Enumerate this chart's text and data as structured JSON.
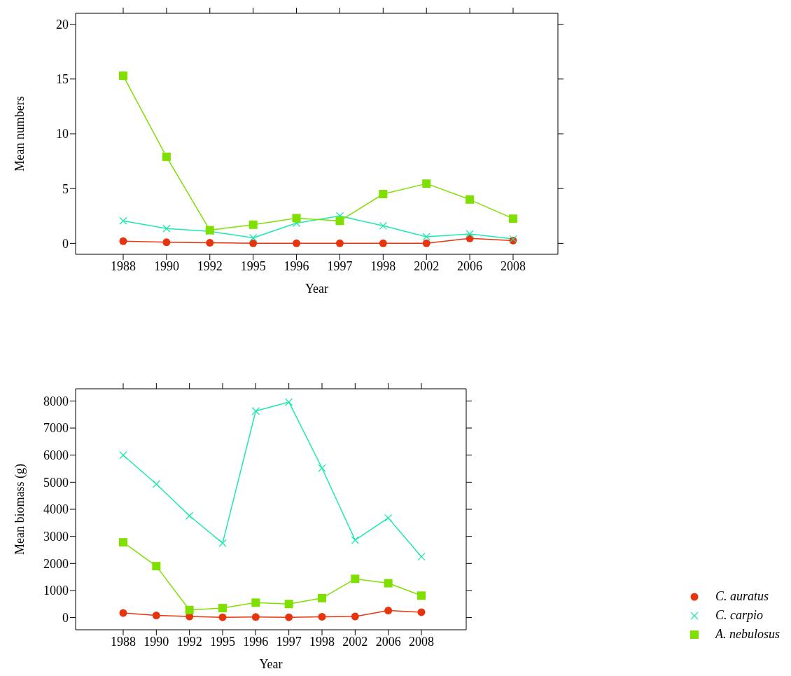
{
  "chart_data": [
    {
      "type": "line",
      "xlabel": "Year",
      "ylabel": "Mean numbers",
      "categories": [
        "1988",
        "1990",
        "1992",
        "1995",
        "1996",
        "1997",
        "1998",
        "2002",
        "2006",
        "2008"
      ],
      "ylim": [
        -1,
        21
      ],
      "yticks": [
        0,
        5,
        10,
        15,
        20
      ],
      "grid": false,
      "legend": false,
      "series": [
        {
          "color": "#e8340c",
          "marker": "circle",
          "values": [
            0.2,
            0.1,
            0.05,
            0,
            0,
            0,
            0,
            0,
            0.45,
            0.25
          ]
        },
        {
          "color": "#1de9b0",
          "marker": "cross",
          "values": [
            2.05,
            1.35,
            1.1,
            0.5,
            1.85,
            2.5,
            1.6,
            0.6,
            0.85,
            0.4
          ]
        },
        {
          "color": "#7fe000",
          "marker": "square",
          "values": [
            15.3,
            7.9,
            1.2,
            1.7,
            2.3,
            2.05,
            4.5,
            5.45,
            4.0,
            2.25
          ]
        }
      ]
    },
    {
      "type": "line",
      "xlabel": "Year",
      "ylabel": "Mean biomass (g)",
      "categories": [
        "1988",
        "1990",
        "1992",
        "1995",
        "1996",
        "1997",
        "1998",
        "2002",
        "2006",
        "2008"
      ],
      "ylim": [
        -450,
        8450
      ],
      "yticks": [
        0,
        1000,
        2000,
        3000,
        4000,
        5000,
        6000,
        7000,
        8000
      ],
      "grid": false,
      "legend": "bottom right",
      "series": [
        {
          "name": "C. auratus",
          "color": "#e8340c",
          "marker": "circle",
          "values": [
            170,
            80,
            40,
            10,
            20,
            10,
            30,
            40,
            260,
            200
          ]
        },
        {
          "name": "C. carpio",
          "color": "#1de9b0",
          "marker": "cross",
          "values": [
            6000,
            4930,
            3760,
            2750,
            7630,
            7960,
            5520,
            2860,
            3680,
            2250
          ]
        },
        {
          "name": "A. nebulosus",
          "color": "#7fe000",
          "marker": "square",
          "values": [
            2780,
            1900,
            280,
            350,
            550,
            500,
            720,
            1430,
            1270,
            810
          ]
        }
      ]
    }
  ]
}
